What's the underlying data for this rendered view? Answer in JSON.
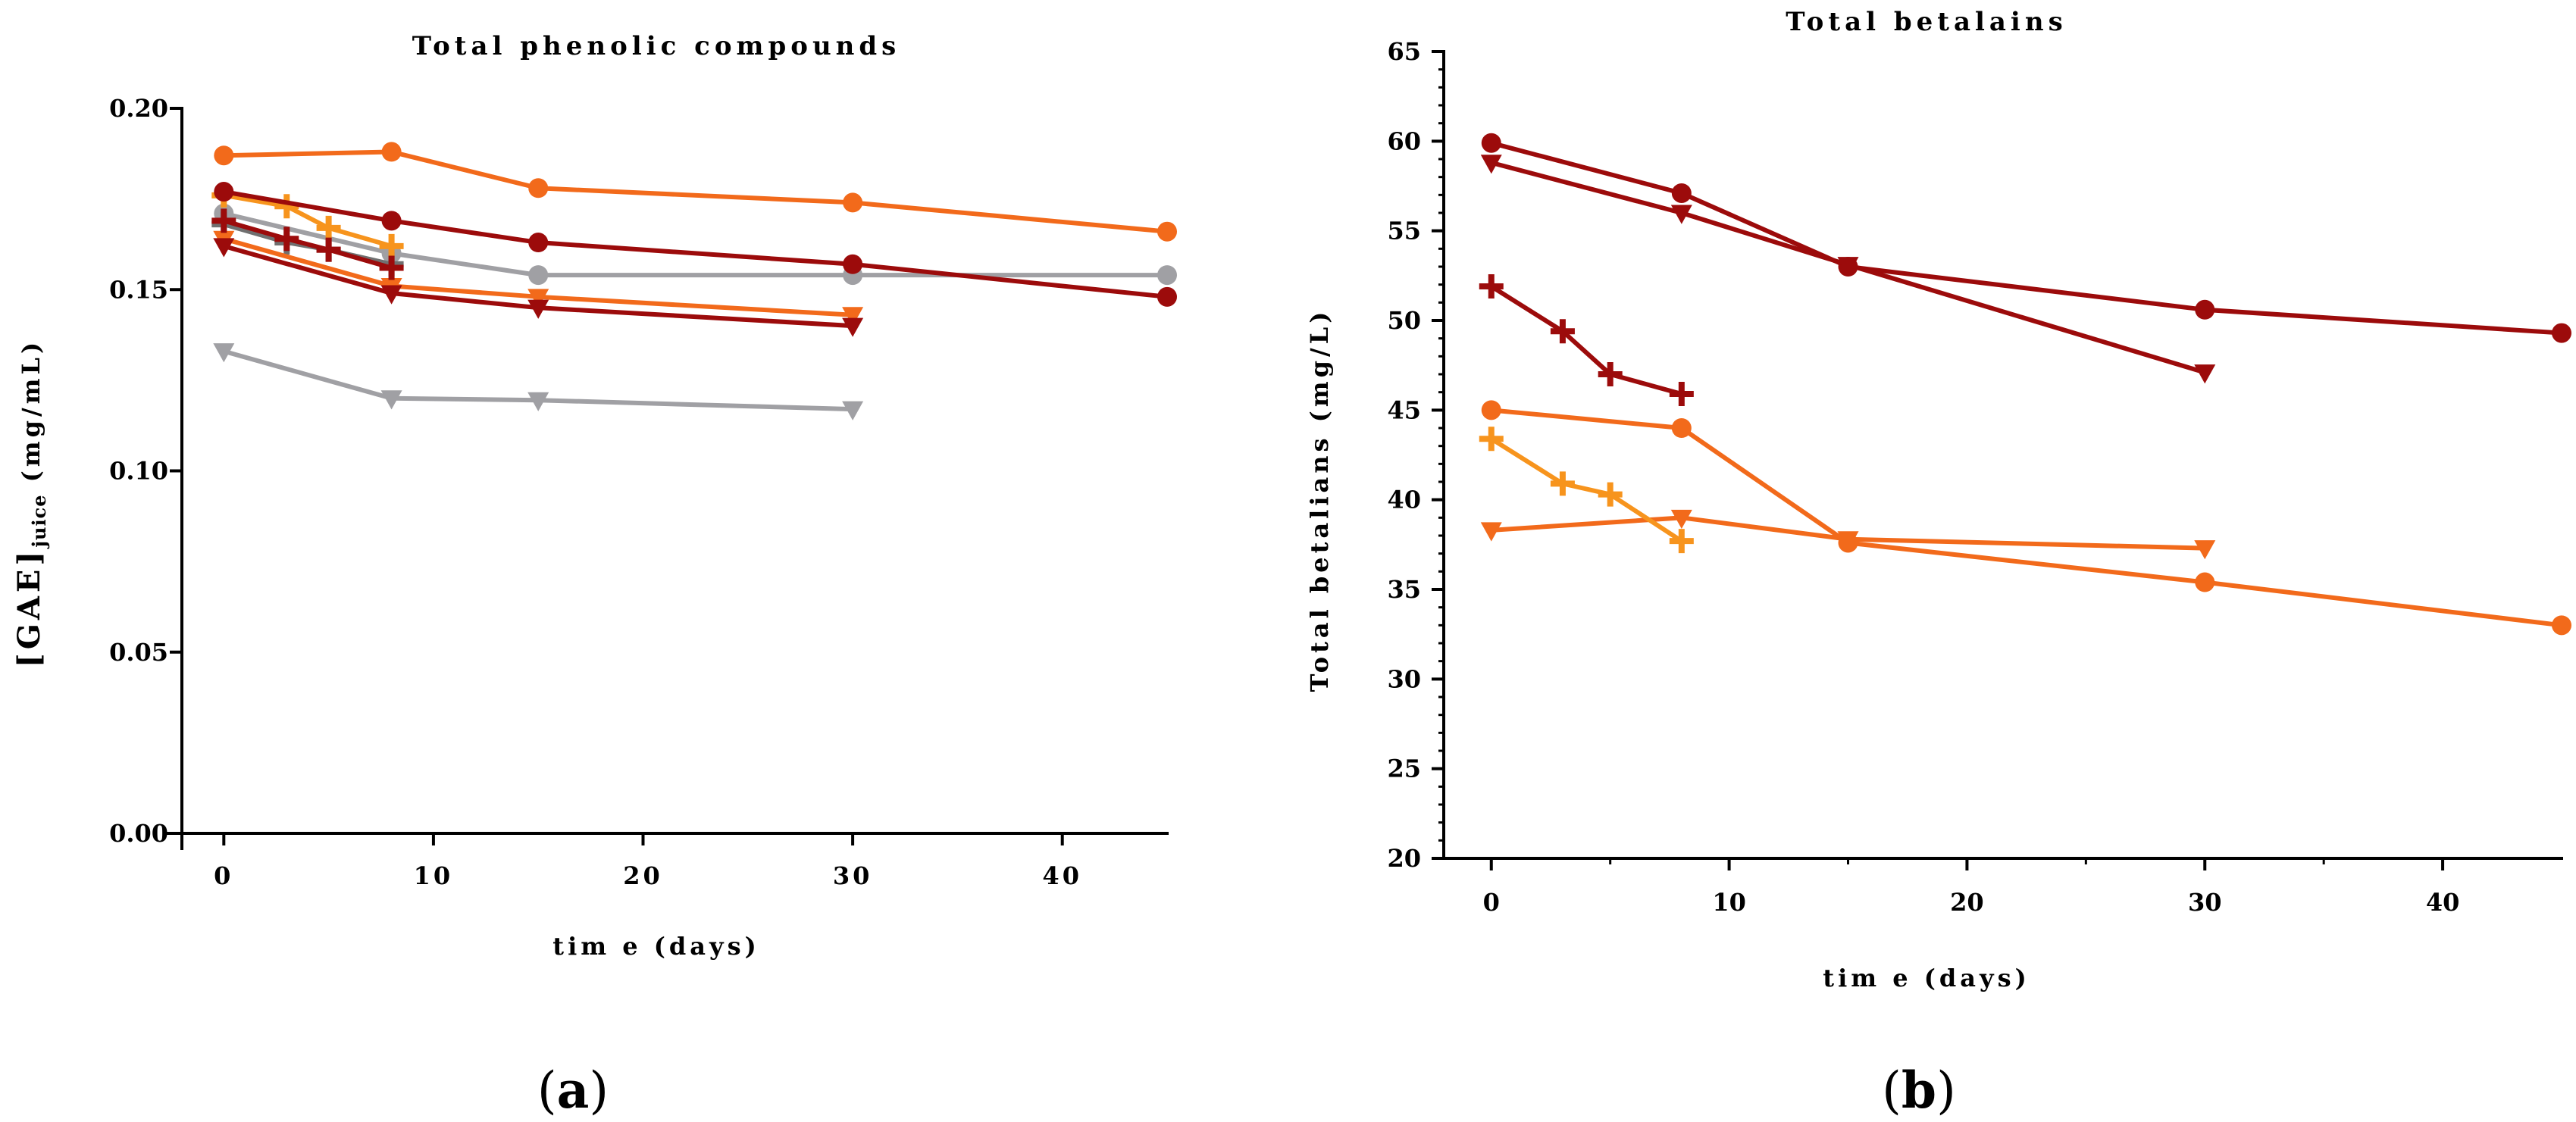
{
  "colors": {
    "dark_red": "#9c0b0b",
    "orange": "#f26a1b",
    "light_orange": "#f7941d",
    "grey": "#a0a0a4",
    "dark_grey": "#707070"
  },
  "panel_labels": [
    {
      "open": "(",
      "letter": "a",
      "close": ")"
    },
    {
      "open": "(",
      "letter": "b",
      "close": ")"
    }
  ],
  "chart_data": [
    {
      "type": "line",
      "title": "Total phenolic compounds",
      "xlabel": "tim e (days)",
      "ylabel": {
        "main": "[GAE]",
        "subscript": "juice",
        "unit": " (mg/mL)"
      },
      "xlim": [
        -2,
        45
      ],
      "ylim": [
        0,
        0.2
      ],
      "xticks": [
        "0",
        "10",
        "20",
        "30",
        "40"
      ],
      "xtick_values": [
        0,
        10,
        20,
        30,
        40
      ],
      "yticks": [
        "0.00",
        "0.05",
        "0.10",
        "0.15",
        "0.20"
      ],
      "ytick_values": [
        0,
        0.05,
        0.1,
        0.15,
        0.2
      ],
      "series": [
        {
          "color": "grey",
          "marker": "circle",
          "x": [
            0,
            8,
            15,
            30,
            45
          ],
          "y": [
            0.171,
            0.16,
            0.154,
            0.154,
            0.154
          ]
        },
        {
          "color": "dark_grey",
          "marker": "plus",
          "x": [
            0,
            3,
            5,
            8
          ],
          "y": [
            0.168,
            0.163,
            0.161,
            0.157
          ]
        },
        {
          "color": "grey",
          "marker": "triangle",
          "x": [
            0,
            8,
            15,
            30
          ],
          "y": [
            0.133,
            0.12,
            0.1195,
            0.117
          ]
        },
        {
          "color": "orange",
          "marker": "circle",
          "x": [
            0,
            8,
            15,
            30,
            45
          ],
          "y": [
            0.187,
            0.188,
            0.178,
            0.174,
            0.166
          ]
        },
        {
          "color": "light_orange",
          "marker": "plus",
          "x": [
            0,
            3,
            5,
            8
          ],
          "y": [
            0.176,
            0.173,
            0.167,
            0.162
          ]
        },
        {
          "color": "orange",
          "marker": "triangle",
          "x": [
            0,
            8,
            15,
            30
          ],
          "y": [
            0.164,
            0.151,
            0.148,
            0.143
          ]
        },
        {
          "color": "dark_red",
          "marker": "circle",
          "x": [
            0,
            8,
            15,
            30,
            45
          ],
          "y": [
            0.177,
            0.169,
            0.163,
            0.157,
            0.148
          ]
        },
        {
          "color": "dark_red",
          "marker": "plus",
          "x": [
            0,
            3,
            5,
            8
          ],
          "y": [
            0.169,
            0.164,
            0.161,
            0.156
          ]
        },
        {
          "color": "dark_red",
          "marker": "triangle",
          "x": [
            0,
            8,
            15,
            30
          ],
          "y": [
            0.162,
            0.149,
            0.145,
            0.14
          ]
        }
      ]
    },
    {
      "type": "line",
      "title": "Total betalains",
      "xlabel": "tim e (days)",
      "ylabel": {
        "main": "Total betalians (mg/L)"
      },
      "xlim": [
        -2,
        45
      ],
      "ylim": [
        20,
        65
      ],
      "xticks": [
        "0",
        "10",
        "20",
        "30",
        "40"
      ],
      "xtick_values": [
        0,
        10,
        20,
        30,
        40
      ],
      "yticks": [
        "20",
        "25",
        "30",
        "35",
        "40",
        "45",
        "50",
        "55",
        "60",
        "65"
      ],
      "ytick_values": [
        20,
        25,
        30,
        35,
        40,
        45,
        50,
        55,
        60,
        65
      ],
      "series": [
        {
          "color": "dark_red",
          "marker": "circle",
          "x": [
            0,
            8,
            15,
            30,
            45
          ],
          "y": [
            59.9,
            57.1,
            53.0,
            50.6,
            49.3
          ]
        },
        {
          "color": "dark_red",
          "marker": "triangle",
          "x": [
            0,
            8,
            15,
            30
          ],
          "y": [
            58.8,
            56.0,
            53.1,
            47.1
          ]
        },
        {
          "color": "dark_red",
          "marker": "plus",
          "x": [
            0,
            3,
            5,
            8
          ],
          "y": [
            51.9,
            49.4,
            47.0,
            45.9
          ]
        },
        {
          "color": "orange",
          "marker": "circle",
          "x": [
            0,
            8,
            15,
            30,
            45
          ],
          "y": [
            45.0,
            44.0,
            37.6,
            35.4,
            33.0
          ]
        },
        {
          "color": "orange",
          "marker": "triangle",
          "x": [
            0,
            8,
            15,
            30
          ],
          "y": [
            38.3,
            39.0,
            37.8,
            37.3
          ]
        },
        {
          "color": "light_orange",
          "marker": "plus",
          "x": [
            0,
            3,
            5,
            8
          ],
          "y": [
            43.4,
            40.9,
            40.3,
            37.7
          ]
        }
      ]
    }
  ]
}
